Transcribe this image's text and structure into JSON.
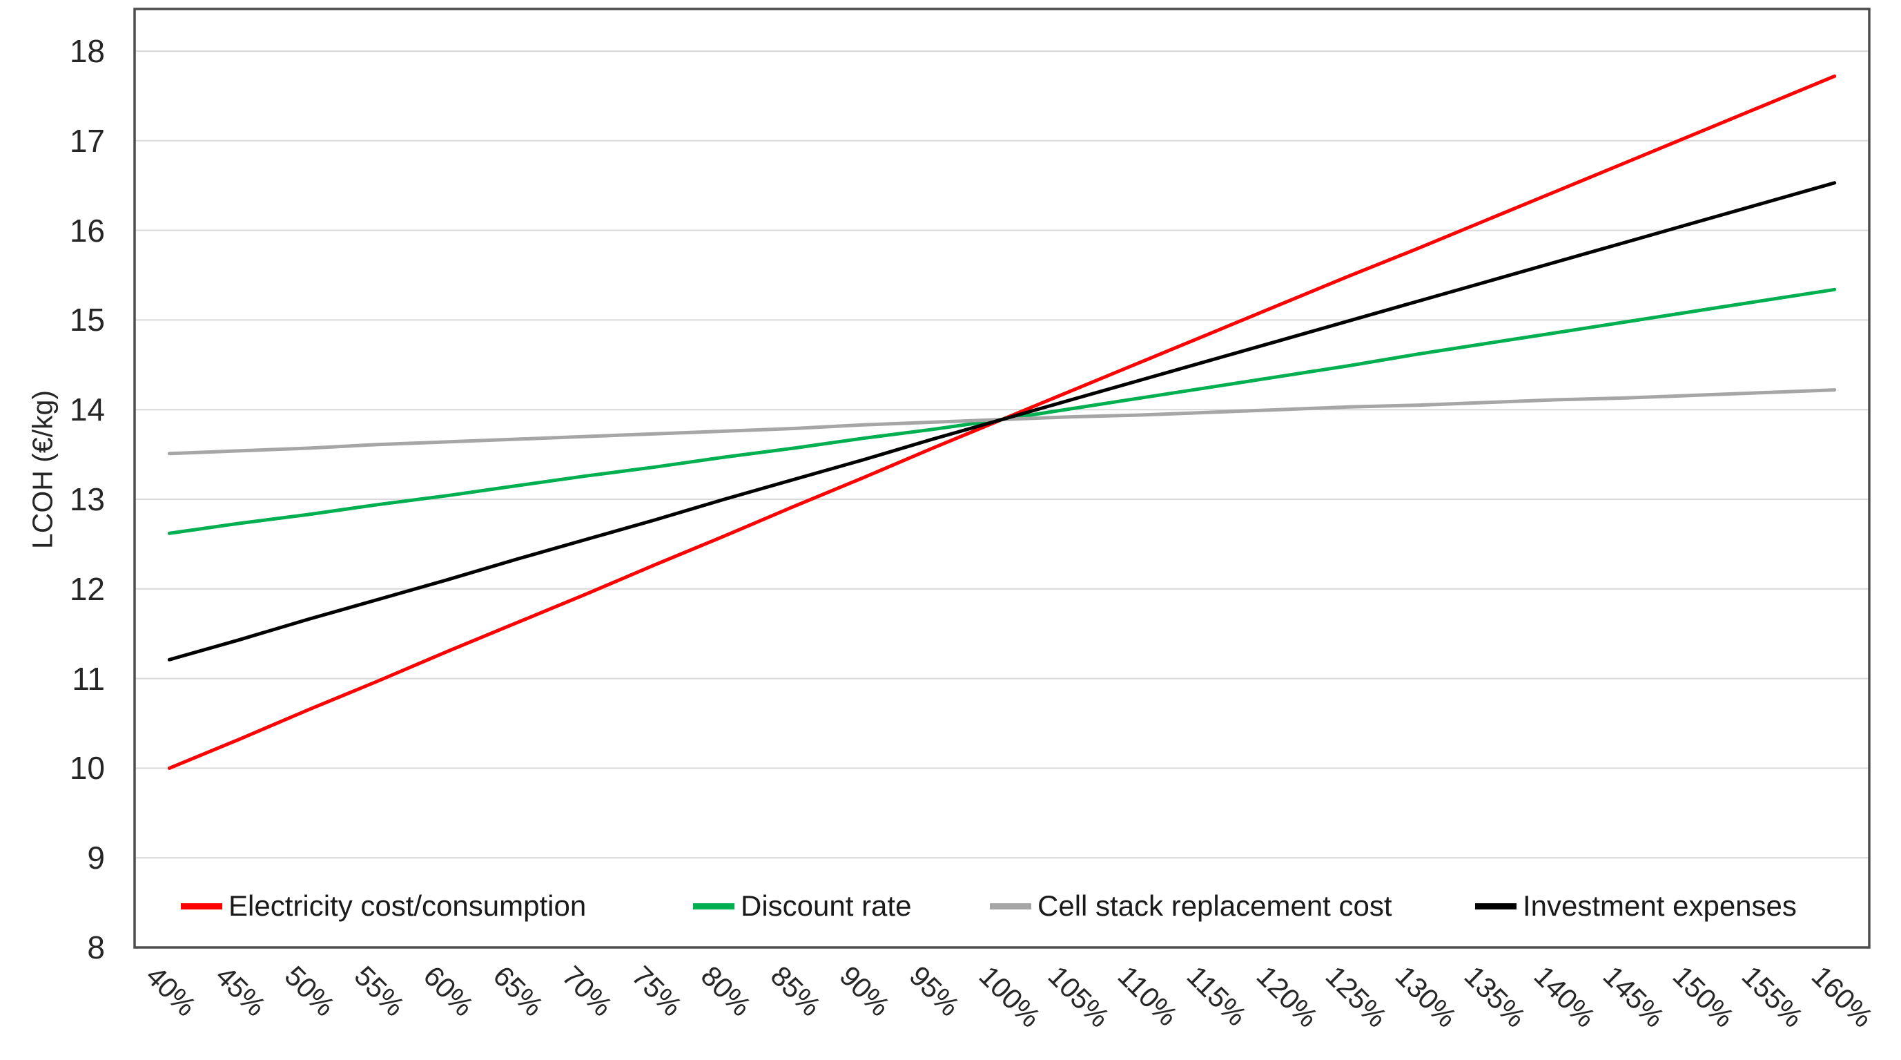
{
  "chart_data": {
    "type": "line",
    "title": "",
    "xlabel": "",
    "ylabel": "LCOH (€/kg)",
    "ylim": [
      8,
      18
    ],
    "ytick_step": 1,
    "yticks": [
      8,
      9,
      10,
      11,
      12,
      13,
      14,
      15,
      16,
      17,
      18
    ],
    "grid": "horizontal",
    "gridline_color": "#d9d9d9",
    "plot_border_color": "#4d4d4d",
    "legend_position": "bottom-inside",
    "x_label_rotation_deg": 45,
    "categories": [
      "40%",
      "45%",
      "50%",
      "55%",
      "60%",
      "65%",
      "70%",
      "75%",
      "80%",
      "85%",
      "90%",
      "95%",
      "100%",
      "105%",
      "110%",
      "115%",
      "120%",
      "125%",
      "130%",
      "135%",
      "140%",
      "145%",
      "150%",
      "155%",
      "160%"
    ],
    "base_case": {
      "category": "100%",
      "value": 13.89
    },
    "series": [
      {
        "name": "Electricity cost/consumption",
        "color": "#ff0000",
        "values": [
          10.0,
          10.32,
          10.65,
          10.97,
          11.3,
          11.62,
          11.94,
          12.27,
          12.59,
          12.92,
          13.24,
          13.57,
          13.89,
          14.21,
          14.53,
          14.85,
          15.17,
          15.49,
          15.8,
          16.12,
          16.44,
          16.76,
          17.08,
          17.4,
          17.72
        ]
      },
      {
        "name": "Discount rate",
        "color": "#00b050",
        "values": [
          12.62,
          12.73,
          12.83,
          12.94,
          13.04,
          13.15,
          13.26,
          13.36,
          13.47,
          13.57,
          13.68,
          13.78,
          13.89,
          14.01,
          14.13,
          14.25,
          14.37,
          14.49,
          14.62,
          14.74,
          14.86,
          14.98,
          15.1,
          15.22,
          15.34
        ]
      },
      {
        "name": "Cell stack replacement cost",
        "color": "#a6a6a6",
        "values": [
          13.51,
          13.54,
          13.57,
          13.61,
          13.64,
          13.67,
          13.7,
          13.73,
          13.76,
          13.79,
          13.83,
          13.86,
          13.89,
          13.92,
          13.94,
          13.97,
          14.0,
          14.03,
          14.05,
          14.08,
          14.11,
          14.13,
          14.16,
          14.19,
          14.22
        ]
      },
      {
        "name": "Investment expenses",
        "color": "#000000",
        "values": [
          11.21,
          11.43,
          11.66,
          11.88,
          12.1,
          12.33,
          12.55,
          12.77,
          13.0,
          13.22,
          13.44,
          13.67,
          13.89,
          14.11,
          14.33,
          14.55,
          14.77,
          14.99,
          15.21,
          15.43,
          15.65,
          15.87,
          16.09,
          16.31,
          16.53
        ]
      }
    ]
  }
}
